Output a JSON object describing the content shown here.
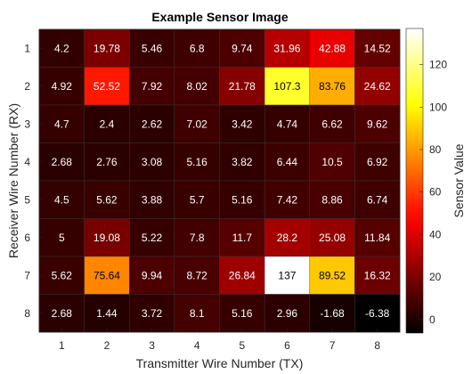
{
  "chart_data": {
    "type": "heatmap",
    "title": "Example Sensor Image",
    "xlabel": "Transmitter Wire Number (TX)",
    "ylabel": "Receiver Wire Number (RX)",
    "x_categories": [
      "1",
      "2",
      "3",
      "4",
      "5",
      "6",
      "7",
      "8"
    ],
    "y_categories": [
      "1",
      "2",
      "3",
      "4",
      "5",
      "6",
      "7",
      "8"
    ],
    "values": [
      [
        "4.2",
        "19.78",
        "5.46",
        "6.8",
        "9.74",
        "31.96",
        "42.88",
        "14.52"
      ],
      [
        "4.92",
        "52.52",
        "7.92",
        "8.02",
        "21.78",
        "107.3",
        "83.76",
        "24.62"
      ],
      [
        "4.7",
        "2.4",
        "2.62",
        "7.02",
        "3.42",
        "4.74",
        "6.62",
        "9.62"
      ],
      [
        "2.68",
        "2.76",
        "3.08",
        "5.16",
        "3.82",
        "6.44",
        "10.5",
        "6.92"
      ],
      [
        "4.5",
        "5.62",
        "3.88",
        "5.7",
        "5.16",
        "7.42",
        "8.86",
        "6.74"
      ],
      [
        "5",
        "19.08",
        "5.22",
        "7.8",
        "11.7",
        "28.2",
        "25.08",
        "11.84"
      ],
      [
        "5.62",
        "75.64",
        "9.94",
        "8.72",
        "26.84",
        "137",
        "89.52",
        "16.32"
      ],
      [
        "2.68",
        "1.44",
        "3.72",
        "8.1",
        "5.16",
        "2.96",
        "-1.68",
        "-6.38"
      ]
    ],
    "colorbar": {
      "label": "Sensor Value",
      "colormap": "hot",
      "limits": [
        -6.38,
        137
      ],
      "ticks": [
        "0",
        "20",
        "40",
        "60",
        "80",
        "100",
        "120"
      ]
    },
    "grid": false
  }
}
